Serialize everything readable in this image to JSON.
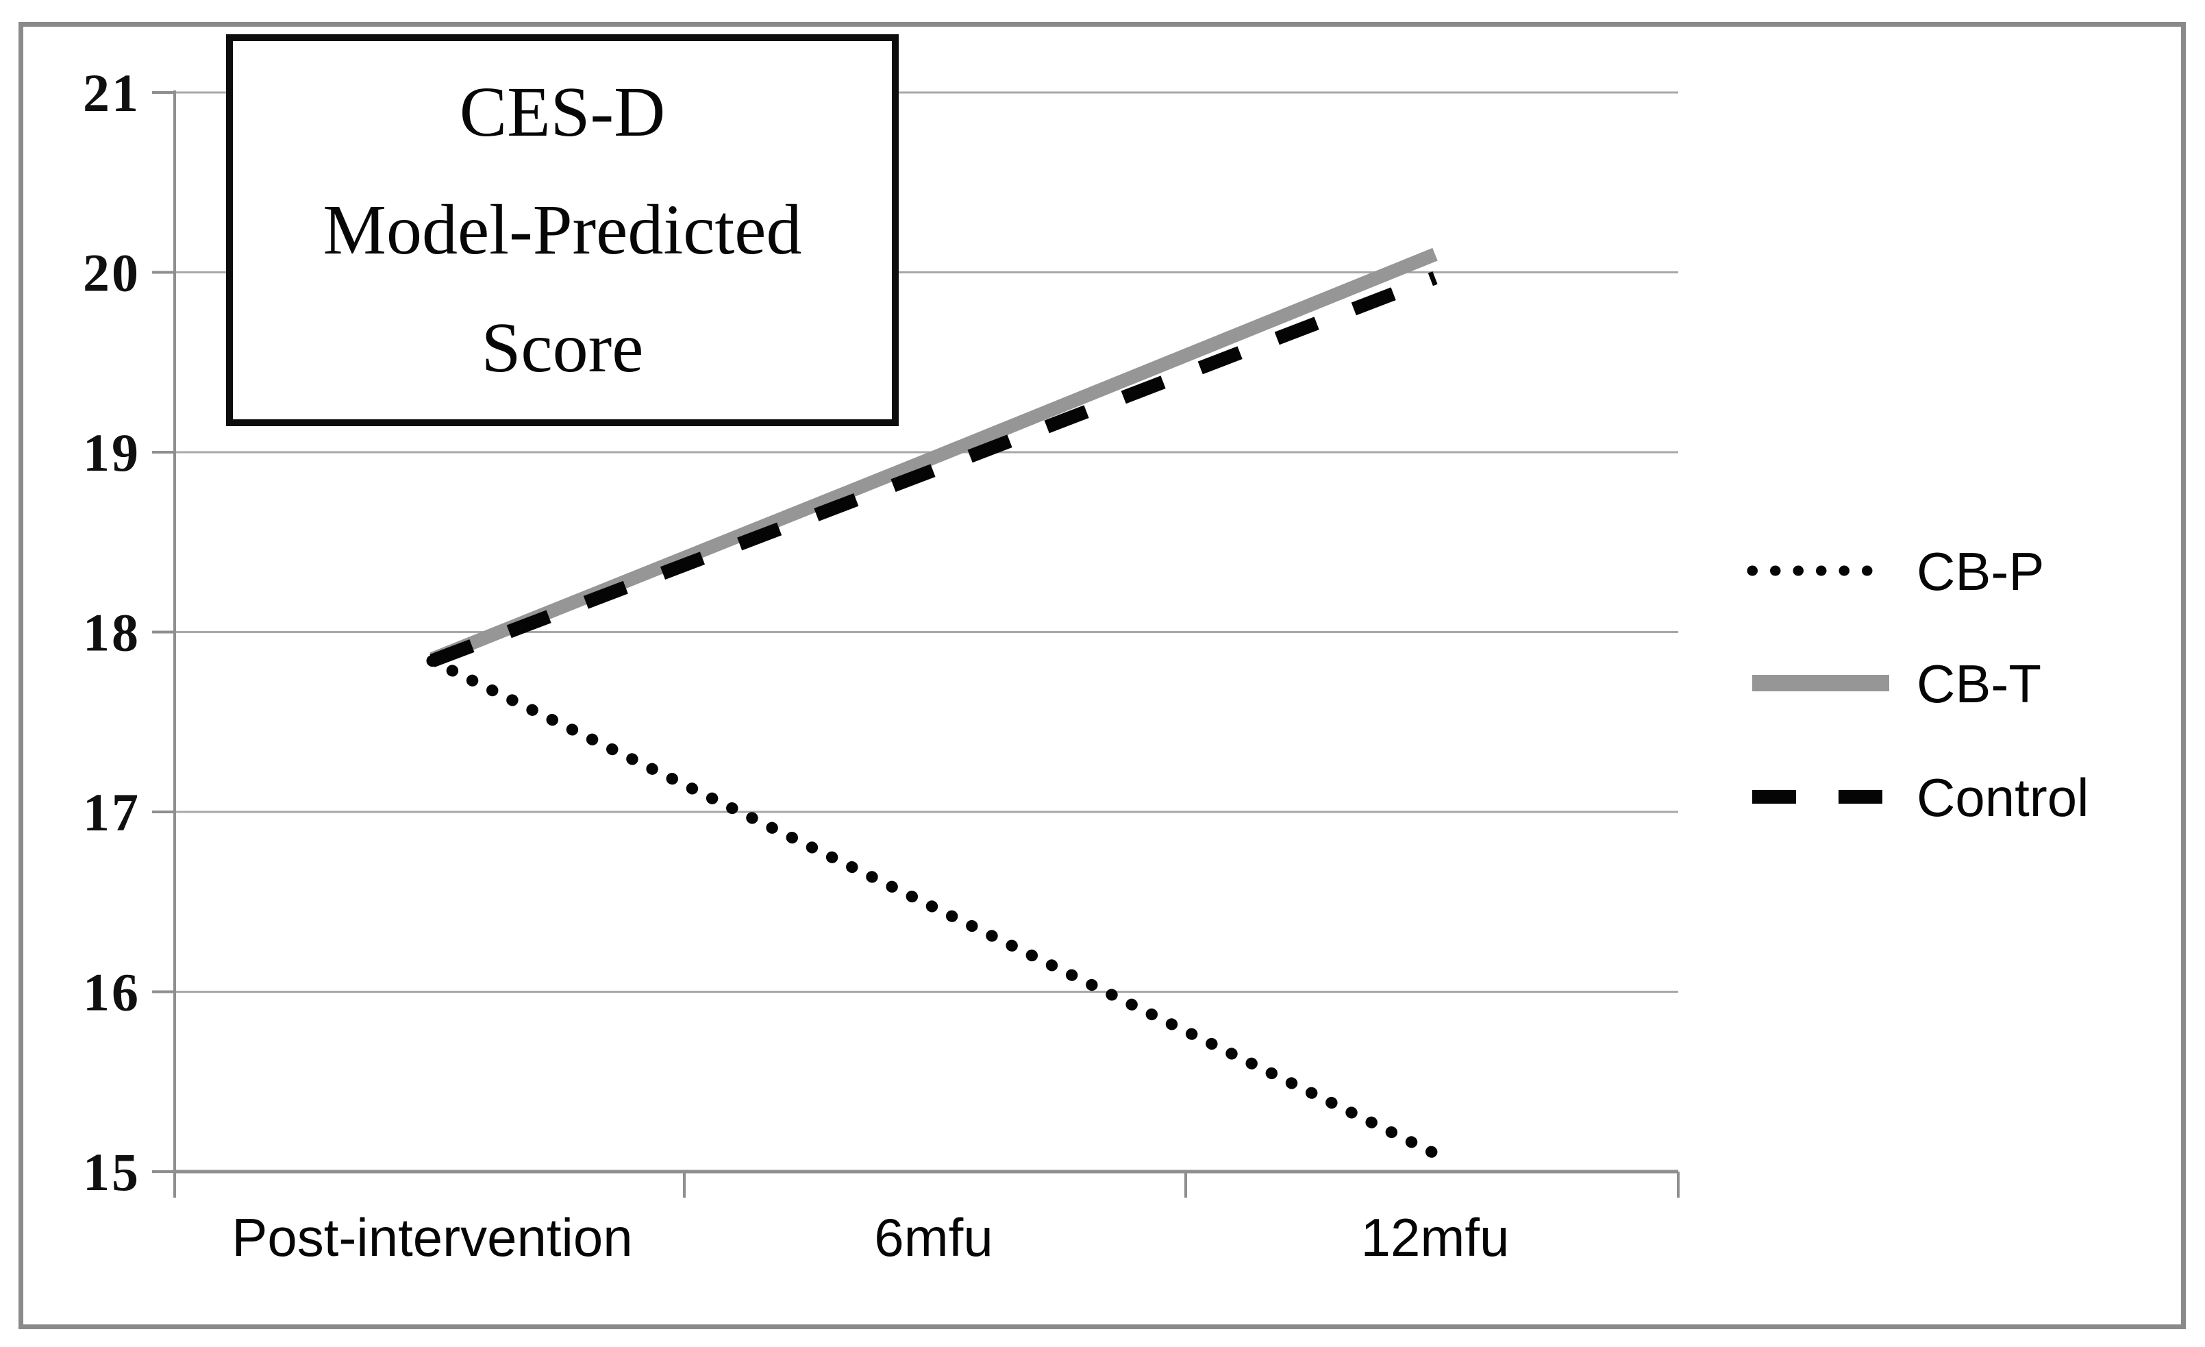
{
  "figure": {
    "border_color": "#8a8a8a",
    "background": "#ffffff"
  },
  "title": {
    "lines": [
      "CES-D",
      "Model-Predicted",
      "Score"
    ]
  },
  "colors": {
    "gridline": "#a8a8a8",
    "axis": "#8f8f8f",
    "black_series": "#050505",
    "gray_series": "#969696",
    "text": "#060606"
  },
  "chart_data": {
    "type": "line",
    "title": "CES-D Model-Predicted Score",
    "categories": [
      "Post-intervention",
      "6mfu",
      "12mfu"
    ],
    "series": [
      {
        "name": "CB-P",
        "style": "dotted",
        "color": "#050505",
        "values": [
          17.84,
          16.47,
          15.1
        ]
      },
      {
        "name": "CB-T",
        "style": "solid",
        "color": "#969696",
        "values": [
          17.85,
          18.97,
          20.1
        ]
      },
      {
        "name": "Control",
        "style": "dashed",
        "color": "#050505",
        "values": [
          17.84,
          18.9,
          19.97
        ]
      }
    ],
    "ylim": [
      15,
      21
    ],
    "yticks": [
      15,
      16,
      17,
      18,
      19,
      20,
      21
    ],
    "xlabel": "",
    "ylabel": "",
    "grid": "horizontal",
    "legend_position": "right"
  }
}
